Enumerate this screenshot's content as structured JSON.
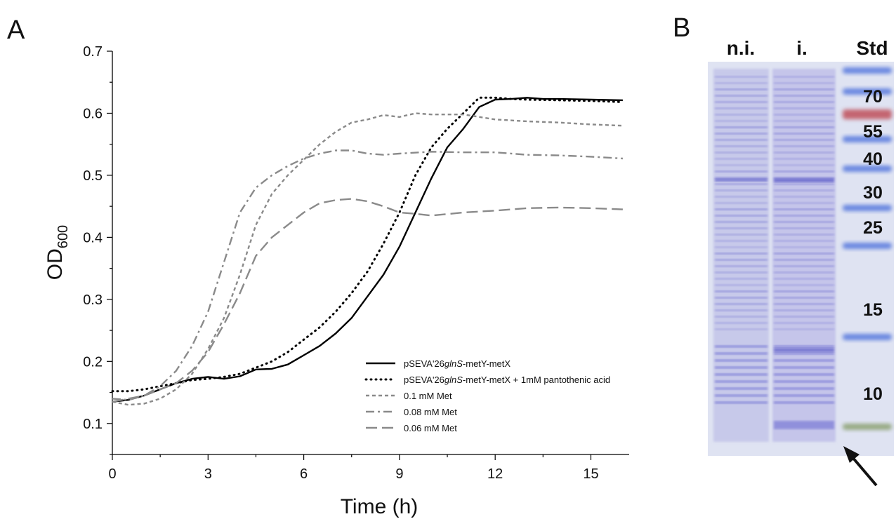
{
  "panels": {
    "a_letter": "A",
    "b_letter": "B"
  },
  "chart_data": {
    "type": "line",
    "xlabel": "Time (h)",
    "ylabel_main": "OD",
    "ylabel_sub": "600",
    "xlim": [
      0,
      16.2
    ],
    "ylim": [
      0.05,
      0.7
    ],
    "xticks": [
      0,
      3,
      6,
      9,
      12,
      15
    ],
    "yticks": [
      0.1,
      0.2,
      0.3,
      0.4,
      0.5,
      0.6,
      0.7
    ],
    "xtick_labels": [
      "0",
      "3",
      "6",
      "9",
      "12",
      "15"
    ],
    "ytick_labels": [
      "0.1",
      "0.2",
      "0.3",
      "0.4",
      "0.5",
      "0.6",
      "0.7"
    ],
    "grid": false,
    "legend_position": "bottom-right",
    "series": [
      {
        "legend_pre": "pSEVA'26",
        "legend_italic": "glnS",
        "legend_post": "-metY-metX",
        "color": "#000000",
        "style": "solid",
        "x": [
          0,
          0.5,
          1,
          1.5,
          2,
          2.5,
          3,
          3.5,
          4,
          4.5,
          5,
          5.5,
          6,
          6.5,
          7,
          7.5,
          8,
          8.5,
          9,
          9.5,
          10,
          10.5,
          11,
          11.5,
          12,
          12.5,
          13,
          13.5,
          14,
          15,
          16
        ],
        "y": [
          0.135,
          0.138,
          0.145,
          0.155,
          0.165,
          0.172,
          0.175,
          0.172,
          0.176,
          0.187,
          0.188,
          0.195,
          0.21,
          0.225,
          0.245,
          0.27,
          0.305,
          0.34,
          0.385,
          0.44,
          0.495,
          0.545,
          0.575,
          0.61,
          0.622,
          0.623,
          0.625,
          0.623,
          0.623,
          0.622,
          0.621
        ]
      },
      {
        "legend_pre": "pSEVA'26",
        "legend_italic": "glnS",
        "legend_post": "-metY-metX + 1mM pantothenic acid",
        "color": "#000000",
        "style": "dotted",
        "x": [
          0,
          0.5,
          1,
          1.5,
          2,
          2.5,
          3,
          3.5,
          4,
          4.5,
          5,
          5.5,
          6,
          6.5,
          7,
          7.5,
          8,
          8.5,
          9,
          9.5,
          10,
          10.5,
          11,
          11.5,
          12,
          12.5,
          13,
          14,
          15,
          16
        ],
        "y": [
          0.152,
          0.152,
          0.155,
          0.16,
          0.165,
          0.17,
          0.172,
          0.175,
          0.18,
          0.19,
          0.2,
          0.215,
          0.235,
          0.255,
          0.28,
          0.31,
          0.345,
          0.39,
          0.44,
          0.5,
          0.545,
          0.575,
          0.6,
          0.625,
          0.625,
          0.623,
          0.622,
          0.621,
          0.62,
          0.618
        ]
      },
      {
        "legend_pre": "0.1 mM Met",
        "legend_italic": "",
        "legend_post": "",
        "color": "#8a8a8a",
        "style": "short-dash",
        "x": [
          0,
          0.5,
          1,
          1.5,
          2,
          2.5,
          3,
          3.5,
          4,
          4.5,
          5,
          5.5,
          6,
          6.5,
          7,
          7.5,
          8,
          8.5,
          9,
          9.5,
          10,
          11,
          12,
          13,
          14,
          15,
          16
        ],
        "y": [
          0.135,
          0.13,
          0.132,
          0.14,
          0.155,
          0.18,
          0.22,
          0.27,
          0.34,
          0.42,
          0.47,
          0.5,
          0.525,
          0.55,
          0.57,
          0.585,
          0.59,
          0.597,
          0.594,
          0.6,
          0.598,
          0.598,
          0.59,
          0.587,
          0.585,
          0.582,
          0.58
        ]
      },
      {
        "legend_pre": "0.08 mM Met",
        "legend_italic": "",
        "legend_post": "",
        "color": "#8a8a8a",
        "style": "dash-dot",
        "x": [
          0,
          0.5,
          1,
          1.5,
          2,
          2.5,
          3,
          3.5,
          4,
          4.5,
          5,
          5.5,
          6,
          6.5,
          7,
          7.5,
          8,
          8.5,
          9,
          10,
          11,
          12,
          13,
          14,
          15,
          16
        ],
        "y": [
          0.14,
          0.138,
          0.145,
          0.16,
          0.185,
          0.225,
          0.28,
          0.36,
          0.44,
          0.48,
          0.5,
          0.515,
          0.527,
          0.535,
          0.54,
          0.54,
          0.535,
          0.533,
          0.535,
          0.538,
          0.537,
          0.537,
          0.533,
          0.532,
          0.53,
          0.527
        ]
      },
      {
        "legend_pre": "0.06 mM Met",
        "legend_italic": "",
        "legend_post": "",
        "color": "#8a8a8a",
        "style": "long-dash",
        "x": [
          0,
          0.5,
          1,
          1.5,
          2,
          2.5,
          3,
          3.5,
          4,
          4.5,
          5,
          5.5,
          6,
          6.5,
          7,
          7.5,
          8,
          8.5,
          9,
          9.5,
          10,
          11,
          12,
          13,
          14,
          15,
          16
        ],
        "y": [
          0.135,
          0.14,
          0.145,
          0.155,
          0.165,
          0.185,
          0.215,
          0.26,
          0.31,
          0.37,
          0.4,
          0.42,
          0.44,
          0.455,
          0.46,
          0.462,
          0.458,
          0.45,
          0.44,
          0.438,
          0.435,
          0.44,
          0.443,
          0.447,
          0.448,
          0.447,
          0.445
        ]
      }
    ]
  },
  "gel": {
    "lanes": [
      "n.i.",
      "i.",
      "Std"
    ],
    "markers": [
      "70",
      "55",
      "40",
      "30",
      "25",
      "15",
      "10"
    ],
    "marker_colors": [
      "#5577dd",
      "#c0505a",
      "#5577dd",
      "#5577dd",
      "#5577dd",
      "#5577dd",
      "#5577dd",
      "#8aa070"
    ]
  }
}
